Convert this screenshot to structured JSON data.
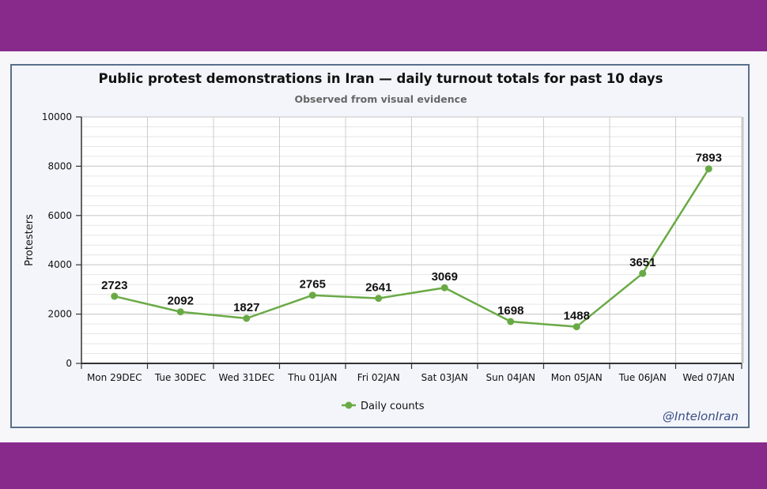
{
  "page": {
    "band_color": "#882a8c",
    "watermark": "@IntelonIran"
  },
  "chart_data": {
    "type": "line",
    "title": "Public protest demonstrations in Iran — daily turnout totals for past 10 days",
    "subtitle": "Observed from visual evidence",
    "xlabel": "",
    "ylabel": "Protesters",
    "ylim": [
      0,
      10000
    ],
    "yticks": [
      0,
      2000,
      4000,
      6000,
      8000,
      10000
    ],
    "minor_step": 400,
    "grid": true,
    "legend_position": "bottom-center",
    "categories": [
      "Mon 29DEC",
      "Tue 30DEC",
      "Wed 31DEC",
      "Thu 01JAN",
      "Fri 02JAN",
      "Sat 03JAN",
      "Sun 04JAN",
      "Mon 05JAN",
      "Tue 06JAN",
      "Wed 07JAN"
    ],
    "series": [
      {
        "name": "Daily counts",
        "color": "#6aaa46",
        "values": [
          2723,
          2092,
          1827,
          2765,
          2641,
          3069,
          1698,
          1488,
          3651,
          7893
        ]
      }
    ]
  }
}
